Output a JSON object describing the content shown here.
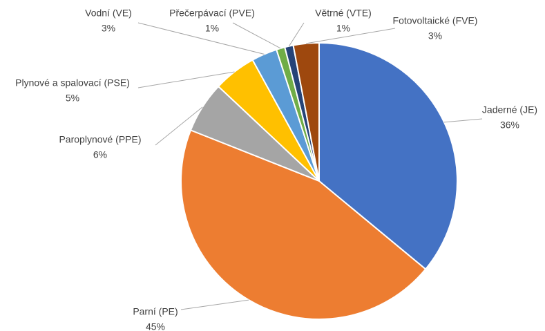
{
  "chart_data": {
    "type": "pie",
    "categories": [
      "Jaderné (JE)",
      "Parní (PE)",
      "Paroplynové (PPE)",
      "Plynové a spalovací (PSE)",
      "Vodní (VE)",
      "Přečerpávací (PVE)",
      "Větrné (VTE)",
      "Fotovoltaické (FVE)"
    ],
    "values": [
      36,
      45,
      6,
      5,
      3,
      1,
      1,
      3
    ],
    "value_labels": [
      "36%",
      "45%",
      "6%",
      "5%",
      "3%",
      "1%",
      "1%",
      "3%"
    ],
    "colors": [
      "#4472c4",
      "#ed7d31",
      "#a5a5a5",
      "#ffc000",
      "#5b9bd5",
      "#70ad47",
      "#264478",
      "#9e480e"
    ]
  }
}
